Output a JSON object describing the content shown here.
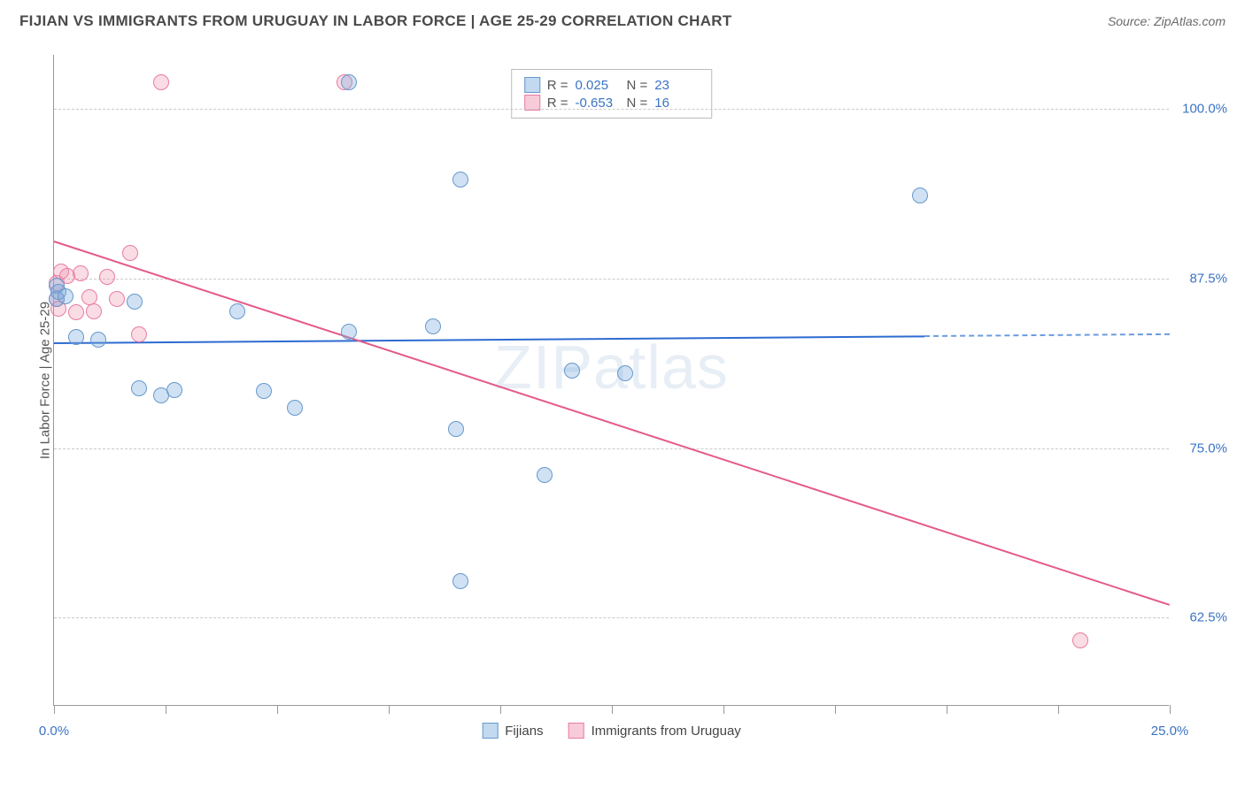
{
  "header": {
    "title": "FIJIAN VS IMMIGRANTS FROM URUGUAY IN LABOR FORCE | AGE 25-29 CORRELATION CHART",
    "source": "Source: ZipAtlas.com"
  },
  "chart": {
    "type": "scatter",
    "ylabel": "In Labor Force | Age 25-29",
    "watermark": "ZIPatlas",
    "background_color": "#ffffff",
    "grid_color": "#c9c9c9",
    "axis_color": "#999999",
    "xlim": [
      0.0,
      25.0
    ],
    "ylim": [
      56.0,
      104.0
    ],
    "xticks": [
      0.0,
      2.5,
      5.0,
      7.5,
      10.0,
      12.5,
      15.0,
      17.5,
      20.0,
      22.5,
      25.0
    ],
    "xticks_labeled": [
      {
        "value": 0.0,
        "label": "0.0%"
      },
      {
        "value": 25.0,
        "label": "25.0%"
      }
    ],
    "yticks": [
      {
        "value": 62.5,
        "label": "62.5%"
      },
      {
        "value": 75.0,
        "label": "75.0%"
      },
      {
        "value": 87.5,
        "label": "87.5%"
      },
      {
        "value": 100.0,
        "label": "100.0%"
      }
    ],
    "label_fontsize": 15,
    "label_color": "#3b73c4",
    "series": [
      {
        "name": "Fijians",
        "id": "fijians",
        "color": "#78aadc",
        "border_color": "#6699cc",
        "marker_size": 18,
        "R": "0.025",
        "N": "23",
        "points": [
          {
            "x": 0.05,
            "y": 87.0
          },
          {
            "x": 0.05,
            "y": 86.0
          },
          {
            "x": 0.1,
            "y": 86.5
          },
          {
            "x": 0.25,
            "y": 86.2
          },
          {
            "x": 0.5,
            "y": 83.2
          },
          {
            "x": 1.0,
            "y": 83.0
          },
          {
            "x": 1.8,
            "y": 85.8
          },
          {
            "x": 1.9,
            "y": 79.4
          },
          {
            "x": 2.4,
            "y": 78.9
          },
          {
            "x": 2.7,
            "y": 79.3
          },
          {
            "x": 4.1,
            "y": 85.1
          },
          {
            "x": 4.7,
            "y": 79.2
          },
          {
            "x": 5.4,
            "y": 78.0
          },
          {
            "x": 6.6,
            "y": 102.0
          },
          {
            "x": 6.6,
            "y": 83.6
          },
          {
            "x": 8.5,
            "y": 84.0
          },
          {
            "x": 9.1,
            "y": 94.8
          },
          {
            "x": 9.0,
            "y": 76.4
          },
          {
            "x": 9.1,
            "y": 65.2
          },
          {
            "x": 11.0,
            "y": 73.0
          },
          {
            "x": 11.6,
            "y": 80.7
          },
          {
            "x": 12.8,
            "y": 80.5
          },
          {
            "x": 19.4,
            "y": 93.6
          }
        ],
        "regression": {
          "y_start": 82.8,
          "y_end": 83.3,
          "x_start": 0.0,
          "x_end": 19.5,
          "extend_to": 25.0
        }
      },
      {
        "name": "Immigrants from Uruguay",
        "id": "uruguay",
        "color": "#f08caa",
        "border_color": "#e87ca1",
        "marker_size": 18,
        "R": "-0.653",
        "N": "16",
        "points": [
          {
            "x": 0.05,
            "y": 87.2
          },
          {
            "x": 0.05,
            "y": 86.0
          },
          {
            "x": 0.1,
            "y": 85.3
          },
          {
            "x": 0.15,
            "y": 88.0
          },
          {
            "x": 0.3,
            "y": 87.7
          },
          {
            "x": 0.5,
            "y": 85.0
          },
          {
            "x": 0.6,
            "y": 87.9
          },
          {
            "x": 0.8,
            "y": 86.1
          },
          {
            "x": 0.9,
            "y": 85.1
          },
          {
            "x": 1.2,
            "y": 87.6
          },
          {
            "x": 1.4,
            "y": 86.0
          },
          {
            "x": 1.7,
            "y": 89.4
          },
          {
            "x": 1.9,
            "y": 83.4
          },
          {
            "x": 2.4,
            "y": 102.0
          },
          {
            "x": 6.5,
            "y": 102.0
          },
          {
            "x": 23.0,
            "y": 60.8
          }
        ],
        "regression": {
          "y_start": 90.3,
          "y_end": 63.5,
          "x_start": 0.0,
          "x_end": 25.0
        }
      }
    ]
  },
  "legend_top": {
    "rows": [
      {
        "swatch": "blue",
        "r_label": "R =",
        "r_value": "0.025",
        "n_label": "N =",
        "n_value": "23"
      },
      {
        "swatch": "pink",
        "r_label": "R =",
        "r_value": "-0.653",
        "n_label": "N =",
        "n_value": "16"
      }
    ]
  },
  "legend_bottom": {
    "items": [
      {
        "swatch": "blue",
        "label": "Fijians"
      },
      {
        "swatch": "pink",
        "label": "Immigrants from Uruguay"
      }
    ]
  }
}
